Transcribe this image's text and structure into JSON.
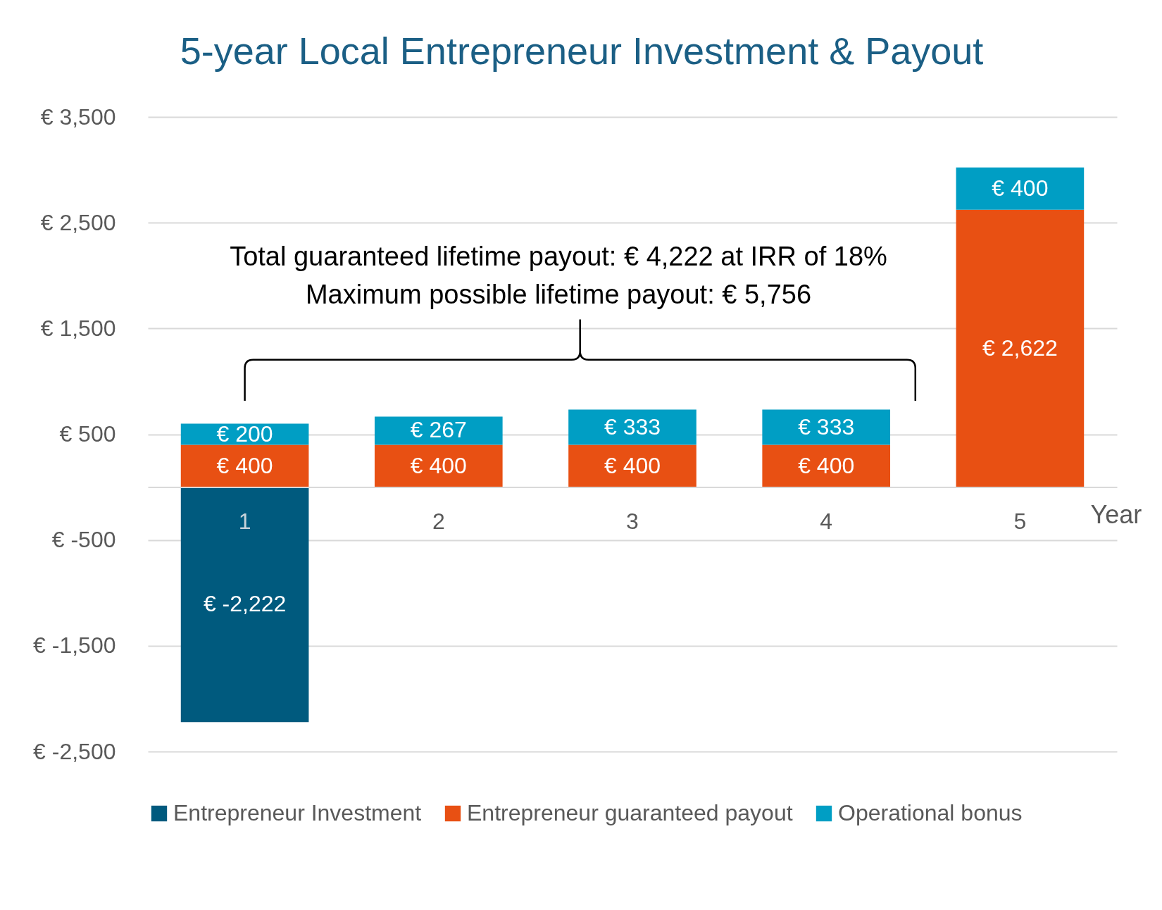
{
  "chart_data": {
    "type": "bar",
    "title": "5-year Local Entrepreneur Investment & Payout",
    "xlabel": "Year",
    "categories": [
      "1",
      "2",
      "3",
      "4",
      "5"
    ],
    "stacked": true,
    "series": [
      {
        "name": "Entrepreneur Investment",
        "color": "#005a7e",
        "values": [
          -2222,
          null,
          null,
          null,
          null
        ],
        "value_labels": [
          "€ -2,222",
          null,
          null,
          null,
          null
        ]
      },
      {
        "name": "Entrepreneur guaranteed payout",
        "color": "#e85013",
        "values": [
          400,
          400,
          400,
          400,
          2622
        ],
        "value_labels": [
          "€ 400",
          "€ 400",
          "€ 400",
          "€ 400",
          "€ 2,622"
        ]
      },
      {
        "name": "Operational bonus",
        "color": "#009ec4",
        "values": [
          200,
          267,
          333,
          333,
          400
        ],
        "value_labels": [
          "€ 200",
          "€ 267",
          "€ 333",
          "€ 333",
          "€ 400"
        ]
      }
    ],
    "ylim": [
      -2500,
      3500
    ],
    "yticks": [
      {
        "value": -2500,
        "label": "€ -2,500"
      },
      {
        "value": -1500,
        "label": "€ -1,500"
      },
      {
        "value": -500,
        "label": "€ -500"
      },
      {
        "value": 500,
        "label": "€ 500"
      },
      {
        "value": 1500,
        "label": "€ 1,500"
      },
      {
        "value": 2500,
        "label": "€ 2,500"
      },
      {
        "value": 3500,
        "label": "€ 3,500"
      }
    ],
    "grid": "y",
    "legend": "bottom",
    "annotations": [
      "Total guaranteed lifetime payout: € 4,222 at IRR of 18%",
      "Maximum possible lifetime payout: € 5,756"
    ]
  }
}
